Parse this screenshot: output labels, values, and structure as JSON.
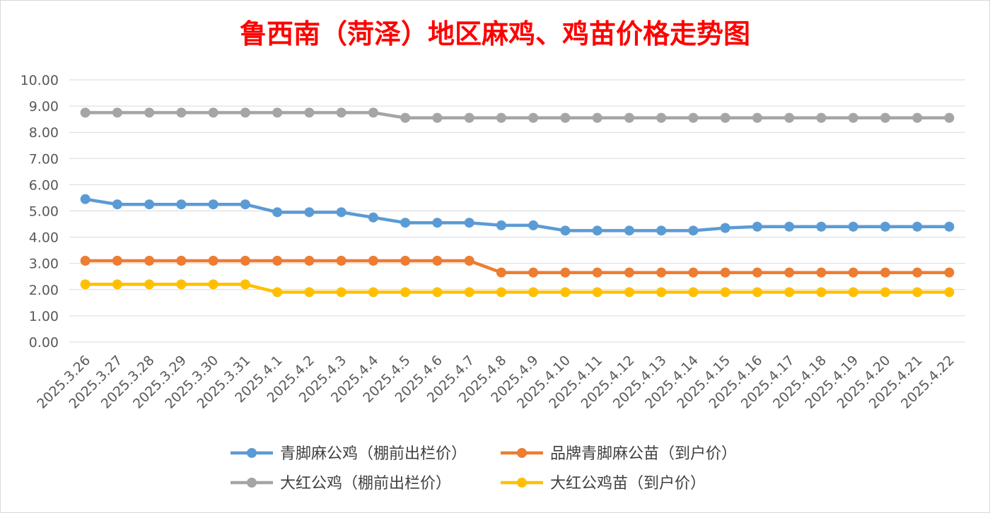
{
  "chart_data": {
    "type": "line",
    "title": "鲁西南（菏泽）地区麻鸡、鸡苗价格走势图",
    "xlabel": "",
    "ylabel": "",
    "ylim": [
      0,
      10
    ],
    "y_ticks": [
      "0.00",
      "1.00",
      "2.00",
      "3.00",
      "4.00",
      "5.00",
      "6.00",
      "7.00",
      "8.00",
      "9.00",
      "10.00"
    ],
    "grid": true,
    "legend_position": "bottom",
    "categories": [
      "2025.3.26",
      "2025.3.27",
      "2025.3.28",
      "2025.3.29",
      "2025.3.30",
      "2025.3.31",
      "2025.4.1",
      "2025.4.2",
      "2025.4.3",
      "2025.4.4",
      "2025.4.5",
      "2025.4.6",
      "2025.4.7",
      "2025.4.8",
      "2025.4.9",
      "2025.4.10",
      "2025.4.11",
      "2025.4.12",
      "2025.4.13",
      "2025.4.14",
      "2025.4.15",
      "2025.4.16",
      "2025.4.17",
      "2025.4.18",
      "2025.4.19",
      "2025.4.20",
      "2025.4.21",
      "2025.4.22"
    ],
    "series": [
      {
        "name": "青脚麻公鸡（棚前出栏价）",
        "color": "#5b9bd5",
        "values": [
          5.45,
          5.25,
          5.25,
          5.25,
          5.25,
          5.25,
          4.95,
          4.95,
          4.95,
          4.75,
          4.55,
          4.55,
          4.55,
          4.45,
          4.45,
          4.25,
          4.25,
          4.25,
          4.25,
          4.25,
          4.35,
          4.4,
          4.4,
          4.4,
          4.4,
          4.4,
          4.4,
          4.4
        ]
      },
      {
        "name": "品牌青脚麻公苗（到户价）",
        "color": "#ed7d31",
        "values": [
          3.1,
          3.1,
          3.1,
          3.1,
          3.1,
          3.1,
          3.1,
          3.1,
          3.1,
          3.1,
          3.1,
          3.1,
          3.1,
          2.65,
          2.65,
          2.65,
          2.65,
          2.65,
          2.65,
          2.65,
          2.65,
          2.65,
          2.65,
          2.65,
          2.65,
          2.65,
          2.65,
          2.65
        ]
      },
      {
        "name": "大红公鸡（棚前出栏价）",
        "color": "#a5a5a5",
        "values": [
          8.75,
          8.75,
          8.75,
          8.75,
          8.75,
          8.75,
          8.75,
          8.75,
          8.75,
          8.75,
          8.55,
          8.55,
          8.55,
          8.55,
          8.55,
          8.55,
          8.55,
          8.55,
          8.55,
          8.55,
          8.55,
          8.55,
          8.55,
          8.55,
          8.55,
          8.55,
          8.55,
          8.55
        ]
      },
      {
        "name": "大红公鸡苗（到户价）",
        "color": "#ffc000",
        "values": [
          2.2,
          2.2,
          2.2,
          2.2,
          2.2,
          2.2,
          1.9,
          1.9,
          1.9,
          1.9,
          1.9,
          1.9,
          1.9,
          1.9,
          1.9,
          1.9,
          1.9,
          1.9,
          1.9,
          1.9,
          1.9,
          1.9,
          1.9,
          1.9,
          1.9,
          1.9,
          1.9,
          1.9
        ]
      }
    ]
  }
}
